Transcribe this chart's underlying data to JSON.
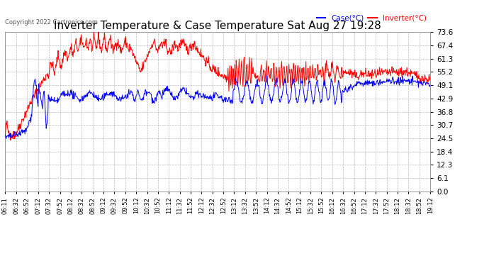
{
  "title": "Inverter Temperature & Case Temperature Sat Aug 27 19:28",
  "copyright": "Copyright 2022 Cartronics.com",
  "legend_case_label": "Case(°C)",
  "legend_inverter_label": "Inverter(°C)",
  "legend_case_color": "blue",
  "legend_inverter_color": "red",
  "case_line_color": "red",
  "inverter_line_color": "blue",
  "yticks": [
    0.0,
    6.1,
    12.3,
    18.4,
    24.5,
    30.7,
    36.8,
    42.9,
    49.1,
    55.2,
    61.3,
    67.4,
    73.6
  ],
  "ymin": 0.0,
  "ymax": 73.6,
  "background_color": "#ffffff",
  "grid_color": "#bbbbbb",
  "title_fontsize": 11,
  "xlabel_fontsize": 6,
  "ylabel_fontsize": 7.5,
  "xtick_labels": [
    "06:11",
    "06:32",
    "06:52",
    "07:12",
    "07:32",
    "07:52",
    "08:12",
    "08:32",
    "08:52",
    "09:12",
    "09:32",
    "09:52",
    "10:12",
    "10:32",
    "10:52",
    "11:12",
    "11:32",
    "11:52",
    "12:12",
    "12:32",
    "12:52",
    "13:12",
    "13:32",
    "13:52",
    "14:12",
    "14:32",
    "14:52",
    "15:12",
    "15:32",
    "15:52",
    "16:12",
    "16:32",
    "16:52",
    "17:12",
    "17:32",
    "17:52",
    "18:12",
    "18:32",
    "18:52",
    "19:12"
  ]
}
